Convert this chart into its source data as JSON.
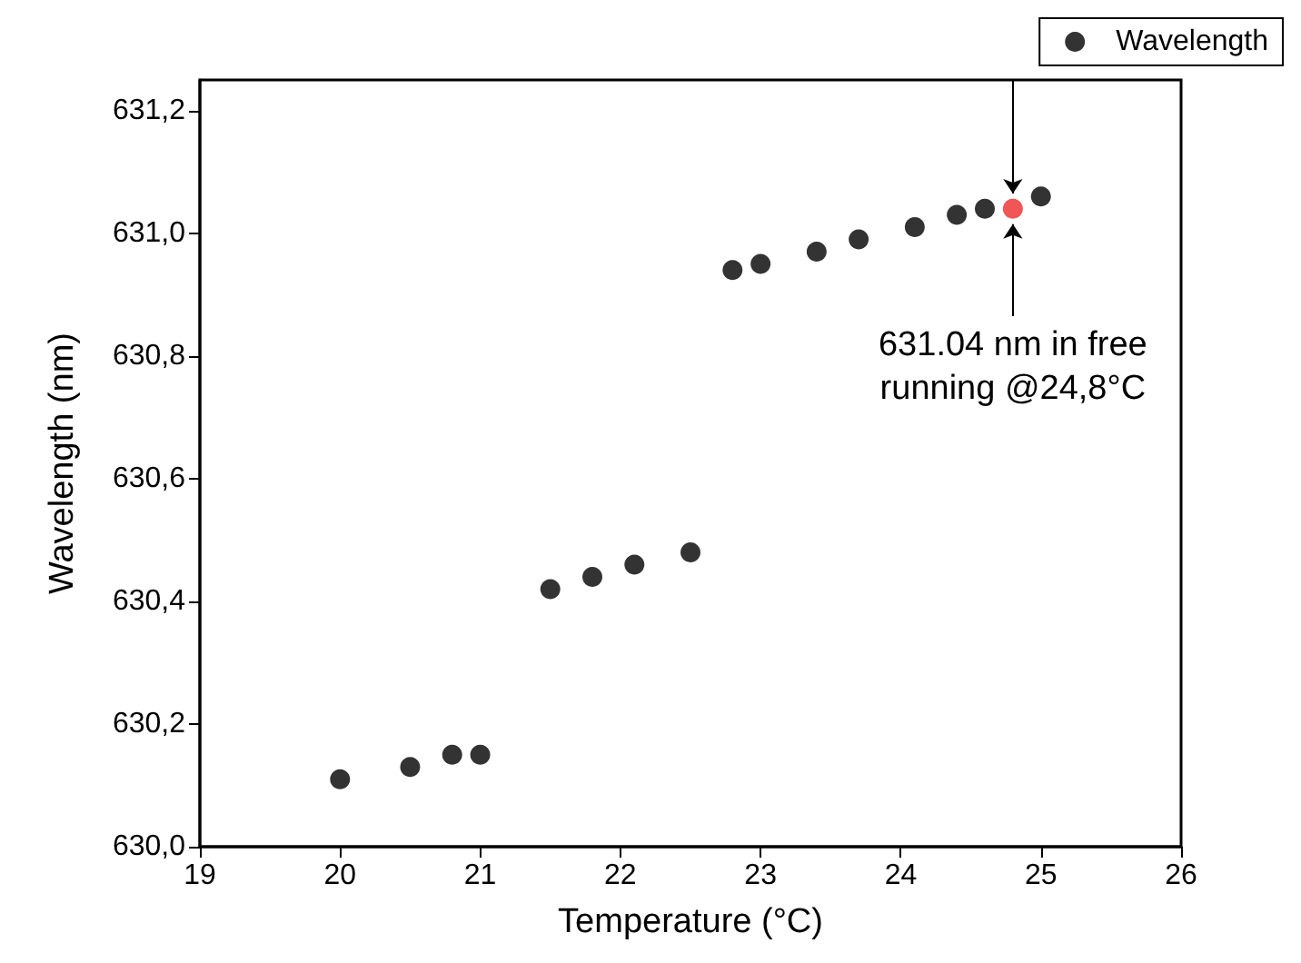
{
  "chart_data": {
    "type": "scatter",
    "xlabel": "Temperature (°C)",
    "ylabel": "Wavelength (nm)",
    "x": [
      20,
      20.5,
      20.8,
      21,
      21.5,
      21.8,
      22.1,
      22.5,
      22.8,
      23,
      23.4,
      23.7,
      24.1,
      24.4,
      24.6,
      24.8,
      25
    ],
    "series": [
      {
        "name": "Wavelength",
        "color": "#000000",
        "values": [
          630.11,
          630.13,
          630.15,
          630.15,
          630.42,
          630.44,
          630.46,
          630.48,
          630.94,
          630.95,
          630.97,
          630.99,
          631.01,
          631.03,
          631.04,
          631.04,
          631.06
        ],
        "colors": [
          "#000000",
          "#000000",
          "#000000",
          "#000000",
          "#000000",
          "#000000",
          "#000000",
          "#000000",
          "#000000",
          "#000000",
          "#000000",
          "#000000",
          "#000000",
          "#000000",
          "#000000",
          "#ee2a2a",
          "#000000"
        ]
      }
    ],
    "xlim": [
      19,
      26
    ],
    "xticks": [
      19,
      20,
      21,
      22,
      23,
      24,
      25,
      26
    ],
    "ylim": [
      630,
      631.25
    ],
    "yticks": [
      {
        "value": 630,
        "label": "630,0"
      },
      {
        "value": 630.2,
        "label": "630,2"
      },
      {
        "value": 630.4,
        "label": "630,4"
      },
      {
        "value": 630.6,
        "label": "630,6"
      },
      {
        "value": 630.8,
        "label": "630,8"
      },
      {
        "value": 631,
        "label": "631,0"
      },
      {
        "value": 631.2,
        "label": "631,2"
      }
    ],
    "annotations": [
      {
        "text": "631.04 nm in free\nrunning @24,8°C",
        "x": 24.8,
        "y": 631.04
      }
    ],
    "marker": "circle",
    "legend": "top right",
    "grid": false
  }
}
